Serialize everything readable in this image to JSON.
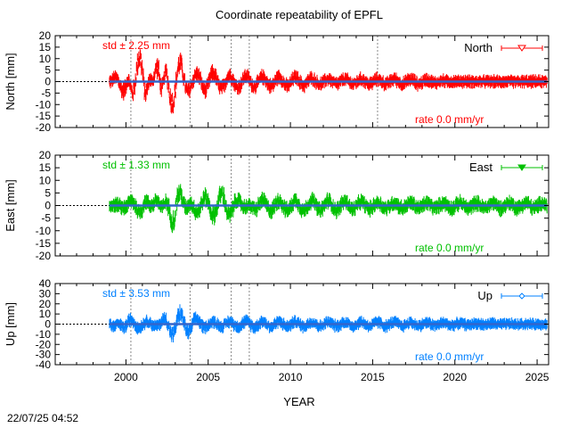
{
  "title": "Coordinate repeatability of EPFL",
  "xlabel": "YEAR",
  "timestamp": "22/07/25 04:52",
  "chart_data": [
    {
      "type": "scatter",
      "ylabel": "North [mm]",
      "ylim": [
        -20,
        20
      ],
      "yticks": [
        -20,
        -15,
        -10,
        -5,
        0,
        5,
        10,
        15,
        20
      ],
      "xlim": [
        1995.7,
        2025.7
      ],
      "xticks": [
        2000,
        2005,
        2010,
        2015,
        2020,
        2025
      ],
      "color": "#ff0000",
      "legend": "North",
      "legend_position": "top-right",
      "std_text": "std ± 2.25 mm",
      "rate_text": "rate  0.0 mm/yr",
      "data_start": 1999.0,
      "data_end": 2025.6,
      "vertical_lines": [
        2000.3,
        2003.9,
        2006.4,
        2007.5,
        2015.3
      ],
      "series": [
        {
          "x": [
            1999.0,
            2000.0,
            2000.5,
            2001.0,
            2001.5,
            2002.0,
            2002.5,
            2003.0,
            2004.0,
            2005.0,
            2006.0,
            2008.0,
            2010.0,
            2012.0,
            2015.0,
            2018.0,
            2020.0,
            2022.0,
            2025.6
          ],
          "y": [
            0,
            5,
            -8,
            -12,
            3,
            -10,
            8,
            10,
            3,
            4,
            3,
            2,
            2,
            1,
            1,
            1,
            0,
            0,
            0
          ]
        }
      ]
    },
    {
      "type": "scatter",
      "ylabel": "East [mm]",
      "ylim": [
        -20,
        20
      ],
      "yticks": [
        -20,
        -15,
        -10,
        -5,
        0,
        5,
        10,
        15,
        20
      ],
      "xlim": [
        1995.7,
        2025.7
      ],
      "xticks": [
        2000,
        2005,
        2010,
        2015,
        2020,
        2025
      ],
      "color": "#00c000",
      "legend": "East",
      "legend_position": "top-right",
      "std_text": "std ± 1.33 mm",
      "rate_text": "rate  0.0 mm/yr",
      "data_start": 1999.0,
      "data_end": 2025.6,
      "vertical_lines": [
        2000.3,
        2003.9,
        2006.4,
        2007.5
      ],
      "series": [
        {
          "x": [
            1999.0,
            2000.0,
            2001.0,
            2002.0,
            2003.0,
            2004.0,
            2006.0,
            2008.0,
            2012.0,
            2016.0,
            2020.0,
            2025.6
          ],
          "y": [
            0,
            1,
            3,
            -3,
            8,
            -2,
            -5,
            2,
            2,
            1,
            1,
            1
          ]
        }
      ]
    },
    {
      "type": "scatter",
      "ylabel": "Up [mm]",
      "ylim": [
        -40,
        40
      ],
      "yticks": [
        -40,
        -30,
        -20,
        -10,
        0,
        10,
        20,
        30,
        40
      ],
      "xlim": [
        1995.7,
        2025.7
      ],
      "xticks": [
        2000,
        2005,
        2010,
        2015,
        2020,
        2025
      ],
      "color": "#0080ff",
      "legend": "Up",
      "legend_position": "top-right",
      "std_text": "std ± 3.53 mm",
      "rate_text": "rate  0.0 mm/yr",
      "data_start": 1999.0,
      "data_end": 2025.6,
      "vertical_lines": [
        2000.3,
        2003.9,
        2006.4,
        2007.5
      ],
      "series": [
        {
          "x": [
            1999.0,
            2000.0,
            2001.0,
            2002.0,
            2003.0,
            2005.0,
            2008.0,
            2012.0,
            2016.0,
            2020.0,
            2025.6
          ],
          "y": [
            -5,
            5,
            3,
            2,
            12,
            2,
            3,
            2,
            2,
            1,
            0
          ]
        }
      ]
    }
  ]
}
